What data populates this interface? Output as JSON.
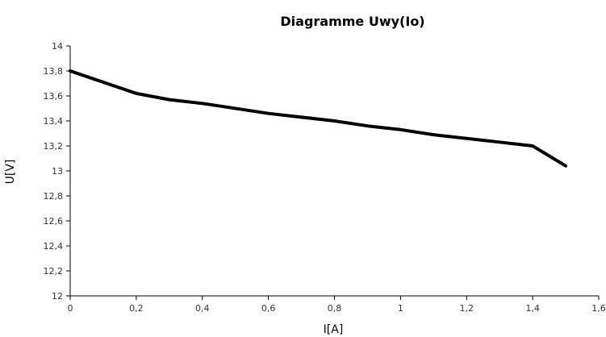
{
  "chart_data": {
    "type": "line",
    "title": "Diagramme Uwy(Io)",
    "xlabel": "I[A]",
    "ylabel": "U[V]",
    "xlim": [
      0,
      1.6
    ],
    "ylim": [
      12,
      14
    ],
    "x_ticks": [
      0,
      0.2,
      0.4,
      0.6,
      0.8,
      1,
      1.2,
      1.4,
      1.6
    ],
    "x_tick_labels": [
      "0",
      "0,2",
      "0,4",
      "0,6",
      "0,8",
      "1",
      "1,2",
      "1,4",
      "1,6"
    ],
    "y_ticks": [
      12,
      12.2,
      12.4,
      12.6,
      12.8,
      13,
      13.2,
      13.4,
      13.6,
      13.8,
      14
    ],
    "y_tick_labels": [
      "12",
      "12,2",
      "12,4",
      "12,6",
      "12,8",
      "13",
      "13,2",
      "13,4",
      "13,6",
      "13,8",
      "14"
    ],
    "grid": false,
    "legend": "none",
    "series": [
      {
        "color": "#000000",
        "x": [
          0,
          0.2,
          0.3,
          0.4,
          0.6,
          0.8,
          0.9,
          1,
          1.1,
          1.2,
          1.3,
          1.4,
          1.5
        ],
        "y": [
          13.8,
          13.62,
          13.57,
          13.54,
          13.46,
          13.4,
          13.36,
          13.33,
          13.29,
          13.26,
          13.23,
          13.2,
          13.04
        ]
      }
    ]
  }
}
